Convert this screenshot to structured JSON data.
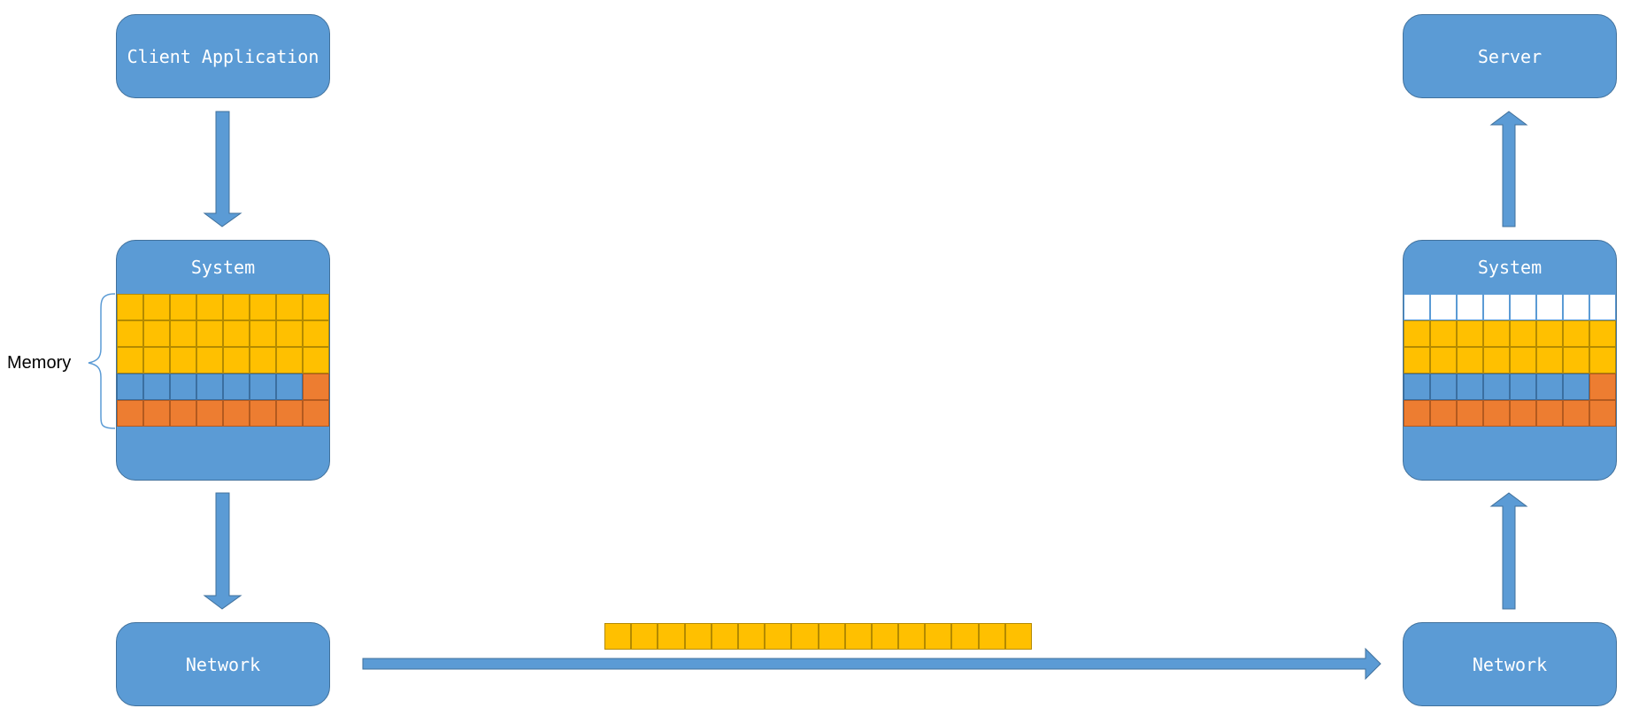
{
  "client": {
    "label": "Client Application"
  },
  "server": {
    "label": "Server"
  },
  "left_system": {
    "title": "System",
    "memory_rows": [
      [
        "y",
        "y",
        "y",
        "y",
        "y",
        "y",
        "y",
        "y"
      ],
      [
        "y",
        "y",
        "y",
        "y",
        "y",
        "y",
        "y",
        "y"
      ],
      [
        "y",
        "y",
        "y",
        "y",
        "y",
        "y",
        "y",
        "y"
      ],
      [
        "b",
        "b",
        "b",
        "b",
        "b",
        "b",
        "b",
        "o"
      ],
      [
        "o",
        "o",
        "o",
        "o",
        "o",
        "o",
        "o",
        "o"
      ]
    ]
  },
  "right_system": {
    "title": "System",
    "memory_rows": [
      [
        "w",
        "w",
        "w",
        "w",
        "w",
        "w",
        "w",
        "w"
      ],
      [
        "y",
        "y",
        "y",
        "y",
        "y",
        "y",
        "y",
        "y"
      ],
      [
        "y",
        "y",
        "y",
        "y",
        "y",
        "y",
        "y",
        "y"
      ],
      [
        "b",
        "b",
        "b",
        "b",
        "b",
        "b",
        "b",
        "o"
      ],
      [
        "o",
        "o",
        "o",
        "o",
        "o",
        "o",
        "o",
        "o"
      ]
    ]
  },
  "memory_label": "Memory",
  "left_network": {
    "label": "Network"
  },
  "right_network": {
    "label": "Network"
  },
  "packet": {
    "cells": 16
  },
  "colors": {
    "node_fill": "#5b9bd5",
    "node_border": "#41719c",
    "data_yellow": "#ffc000",
    "data_orange": "#ed7d31",
    "empty_white": "#ffffff",
    "arrow_fill": "#5b9bd5"
  }
}
